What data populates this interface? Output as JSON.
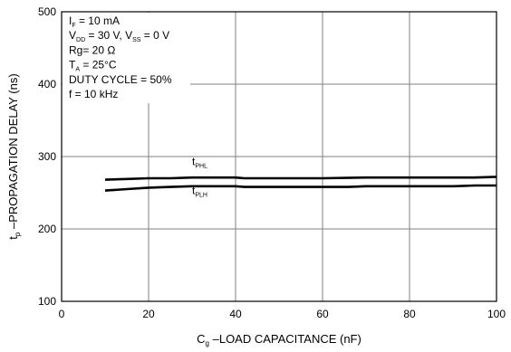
{
  "chart_data": {
    "type": "line",
    "xlabel": {
      "main": "C",
      "sub": "g",
      "rest": " –LOAD CAPACITANCE (nF)"
    },
    "ylabel": {
      "main": "t",
      "sub": "p",
      "rest": " –PROPAGATION DELAY (ns)"
    },
    "xlim": [
      0,
      100
    ],
    "ylim": [
      100,
      500
    ],
    "xticks": [
      0,
      20,
      40,
      60,
      80,
      100
    ],
    "yticks": [
      100,
      200,
      300,
      400,
      500
    ],
    "grid": true,
    "annotations": [
      [
        {
          "t": "I"
        },
        {
          "t": "F",
          "sub": true
        },
        {
          "t": " = 10 mA"
        }
      ],
      [
        {
          "t": "V"
        },
        {
          "t": "DD",
          "sub": true
        },
        {
          "t": " = 30 V, V"
        },
        {
          "t": "SS",
          "sub": true
        },
        {
          "t": " = 0 V"
        }
      ],
      [
        {
          "t": "Rg= 20  Ω"
        }
      ],
      [
        {
          "t": "T"
        },
        {
          "t": "A",
          "sub": true
        },
        {
          "t": " = 25°C"
        }
      ],
      [
        {
          "t": "DUTY CYCLE = 50%"
        }
      ],
      [
        {
          "t": "f = 10 kHz"
        }
      ]
    ],
    "series": [
      {
        "label_main": "t",
        "label_sub": "PHL",
        "label_at": [
          30,
          288
        ],
        "x": [
          10,
          15,
          20,
          25,
          30,
          40,
          42,
          50,
          60,
          70,
          80,
          90,
          95,
          100
        ],
        "y": [
          268,
          269,
          270,
          270,
          271,
          271,
          270,
          270,
          270,
          271,
          271,
          271,
          271,
          272
        ]
      },
      {
        "label_main": "t",
        "label_sub": "PLH",
        "label_at": [
          30,
          248
        ],
        "x": [
          10,
          15,
          20,
          25,
          30,
          40,
          42,
          50,
          60,
          66,
          70,
          80,
          90,
          95,
          100
        ],
        "y": [
          253,
          255,
          257,
          258,
          259,
          259,
          258,
          258,
          258,
          258,
          259,
          259,
          259,
          260,
          260
        ]
      }
    ]
  },
  "colors": {
    "line": "#000000",
    "grid": "#808080",
    "background": "#ffffff"
  }
}
